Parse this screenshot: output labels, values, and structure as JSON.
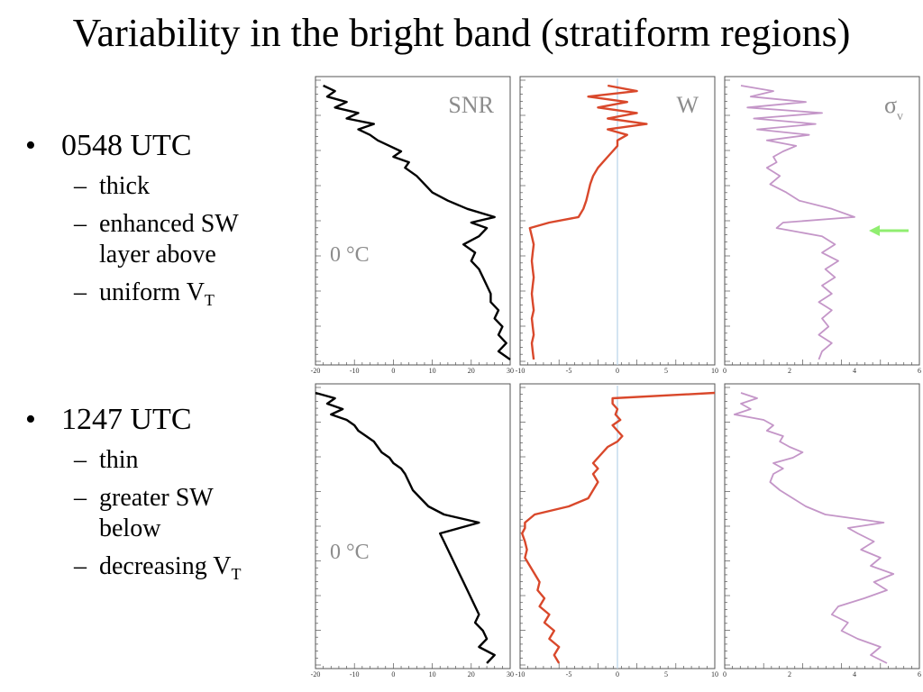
{
  "slide": {
    "title": "Variability in the bright band (stratiform regions)"
  },
  "bullets": [
    {
      "heading": "0548 UTC",
      "items": [
        {
          "lines": [
            "thick"
          ]
        },
        {
          "lines": [
            "enhanced SW",
            "layer above"
          ]
        },
        {
          "lines": [
            "uniform V"
          ],
          "subscript": "T"
        }
      ]
    },
    {
      "heading": "1247 UTC",
      "items": [
        {
          "lines": [
            "thin"
          ]
        },
        {
          "lines": [
            "greater SW",
            "below"
          ]
        },
        {
          "lines": [
            "decreasing V"
          ],
          "subscript": "T"
        }
      ]
    }
  ],
  "colors": {
    "snr": "#000000",
    "w": "#d9482b",
    "sigma": "#c496c8",
    "zero_line": "#b8d1e8",
    "arrow": "#90ee70",
    "label": "#8c8c8c"
  },
  "chart_data": [
    {
      "type": "line",
      "row": "0548 UTC",
      "panel": "SNR",
      "label": "SNR",
      "xlim": [
        -20,
        30
      ],
      "xticks": [
        -20,
        -10,
        0,
        10,
        20,
        30
      ],
      "annotation": "0 °C",
      "y": [
        0,
        2,
        4,
        6,
        8,
        10,
        12,
        14,
        16,
        18,
        20,
        22,
        24,
        26,
        28,
        30,
        33,
        36,
        39,
        42,
        45,
        48,
        50,
        52,
        55,
        58,
        61,
        64,
        67,
        70,
        73,
        76,
        79,
        82,
        85,
        88,
        91,
        94,
        97,
        100
      ],
      "x": [
        -18,
        -15,
        -17,
        -12,
        -15,
        -9,
        -12,
        -5,
        -9,
        -6,
        -4,
        -1,
        2,
        0,
        4,
        3,
        6,
        8,
        10,
        14,
        19,
        26,
        20,
        24,
        22,
        18,
        21,
        20,
        22,
        23,
        24,
        25,
        25,
        27,
        26,
        28,
        27,
        29,
        27,
        30
      ]
    },
    {
      "type": "line",
      "row": "0548 UTC",
      "panel": "W",
      "label": "W",
      "xlim": [
        -10,
        10
      ],
      "xticks": [
        -10,
        -5,
        0,
        5,
        10
      ],
      "y": [
        0,
        2,
        4,
        6,
        8,
        10,
        12,
        14,
        16,
        18,
        20,
        22,
        24,
        26,
        28,
        30,
        33,
        36,
        39,
        42,
        45,
        48,
        50,
        52,
        55,
        58,
        61,
        64,
        67,
        70,
        73,
        76,
        79,
        82,
        85,
        88,
        91,
        94,
        97,
        100
      ],
      "x": [
        -1,
        2,
        -3,
        1,
        -2,
        2,
        -1,
        3,
        -1,
        1,
        0,
        0,
        -0.5,
        -1,
        -1.5,
        -2,
        -2.5,
        -2.8,
        -3,
        -3.2,
        -3.5,
        -4,
        -7,
        -9,
        -8.8,
        -8.6,
        -8.7,
        -8.8,
        -8.7,
        -8.6,
        -8.7,
        -8.8,
        -8.7,
        -8.6,
        -8.8,
        -8.7,
        -8.6,
        -8.8,
        -8.7,
        -8.6
      ]
    },
    {
      "type": "line",
      "row": "0548 UTC",
      "panel": "σv",
      "label": "σ",
      "label_subscript": "v",
      "xlim": [
        0,
        6
      ],
      "xticks": [
        0,
        2,
        4,
        6
      ],
      "y": [
        0,
        2,
        4,
        6,
        8,
        10,
        12,
        14,
        16,
        18,
        20,
        22,
        24,
        26,
        28,
        30,
        33,
        36,
        39,
        42,
        45,
        48,
        50,
        52,
        55,
        58,
        61,
        64,
        67,
        70,
        73,
        76,
        79,
        82,
        85,
        88,
        91,
        94,
        97,
        100
      ],
      "x": [
        0.5,
        1.5,
        0.8,
        2.5,
        0.7,
        3,
        0.9,
        2.8,
        1,
        2.6,
        1.3,
        2.2,
        1.8,
        1.5,
        1.6,
        1.3,
        1.7,
        1.4,
        1.9,
        2.3,
        3.3,
        4,
        1.8,
        1.6,
        3,
        3.4,
        3,
        3.5,
        3.1,
        3.4,
        3,
        3.3,
        2.9,
        3.3,
        3,
        3.2,
        2.9,
        3.3,
        3,
        2.9
      ]
    },
    {
      "type": "line",
      "row": "1247 UTC",
      "panel": "SNR",
      "xlim": [
        -20,
        30
      ],
      "xticks": [
        -20,
        -10,
        0,
        10,
        20,
        30
      ],
      "annotation": "0 °C",
      "y": [
        0,
        2,
        4,
        6,
        8,
        10,
        12,
        14,
        16,
        18,
        20,
        22,
        24,
        26,
        28,
        30,
        33,
        36,
        39,
        42,
        45,
        48,
        50,
        52,
        55,
        58,
        61,
        64,
        67,
        70,
        73,
        76,
        79,
        82,
        85,
        88,
        91,
        94,
        97,
        100
      ],
      "x": [
        -20,
        -15,
        -17,
        -13,
        -16,
        -12,
        -10,
        -9,
        -7,
        -5,
        -4,
        -3,
        -1,
        0,
        2,
        3,
        4,
        5,
        7,
        9,
        13,
        22,
        17,
        12,
        13,
        14,
        15,
        16,
        17,
        18,
        19,
        20,
        21,
        22,
        21,
        23,
        24,
        22,
        26,
        24
      ]
    },
    {
      "type": "line",
      "row": "1247 UTC",
      "panel": "W",
      "xlim": [
        -10,
        10
      ],
      "xticks": [
        -10,
        -5,
        0,
        5,
        10
      ],
      "y": [
        0,
        2,
        4,
        6,
        8,
        10,
        12,
        14,
        16,
        18,
        20,
        22,
        24,
        26,
        28,
        30,
        33,
        36,
        39,
        42,
        45,
        48,
        50,
        52,
        55,
        58,
        61,
        64,
        67,
        70,
        73,
        76,
        79,
        82,
        85,
        88,
        91,
        94,
        97,
        100
      ],
      "x": [
        10,
        -0.5,
        -0.5,
        0,
        -0.2,
        0.3,
        -0.5,
        0,
        0.5,
        0,
        -1,
        -1.5,
        -2,
        -2.5,
        -2,
        -2.5,
        -2,
        -2.5,
        -3,
        -5,
        -8.5,
        -9.5,
        -9.5,
        -9.8,
        -9.5,
        -9.3,
        -9.5,
        -9,
        -8.5,
        -8,
        -8.2,
        -7.5,
        -8,
        -7,
        -7.5,
        -6.5,
        -7,
        -6,
        -6.5,
        -6
      ]
    },
    {
      "type": "line",
      "row": "1247 UTC",
      "panel": "σv",
      "xlim": [
        0,
        6
      ],
      "xticks": [
        0,
        2,
        4,
        6
      ],
      "y": [
        0,
        2,
        4,
        6,
        8,
        10,
        12,
        14,
        16,
        18,
        20,
        22,
        24,
        26,
        28,
        30,
        33,
        36,
        39,
        42,
        45,
        48,
        50,
        52,
        55,
        58,
        61,
        64,
        67,
        70,
        73,
        76,
        79,
        82,
        85,
        88,
        91,
        94,
        97,
        100
      ],
      "x": [
        0.5,
        1,
        0.5,
        0.8,
        0.3,
        1.2,
        1.5,
        1.3,
        1.8,
        1.7,
        2,
        2.4,
        2.1,
        1.5,
        1.8,
        1.5,
        1.4,
        1.7,
        2.1,
        2.5,
        3.1,
        4.9,
        3.8,
        4.1,
        4.6,
        4.2,
        4.8,
        4.5,
        5.2,
        4.6,
        5,
        4.3,
        3.5,
        3.3,
        3.8,
        3.6,
        4.1,
        4.8,
        4.5,
        5
      ]
    }
  ]
}
